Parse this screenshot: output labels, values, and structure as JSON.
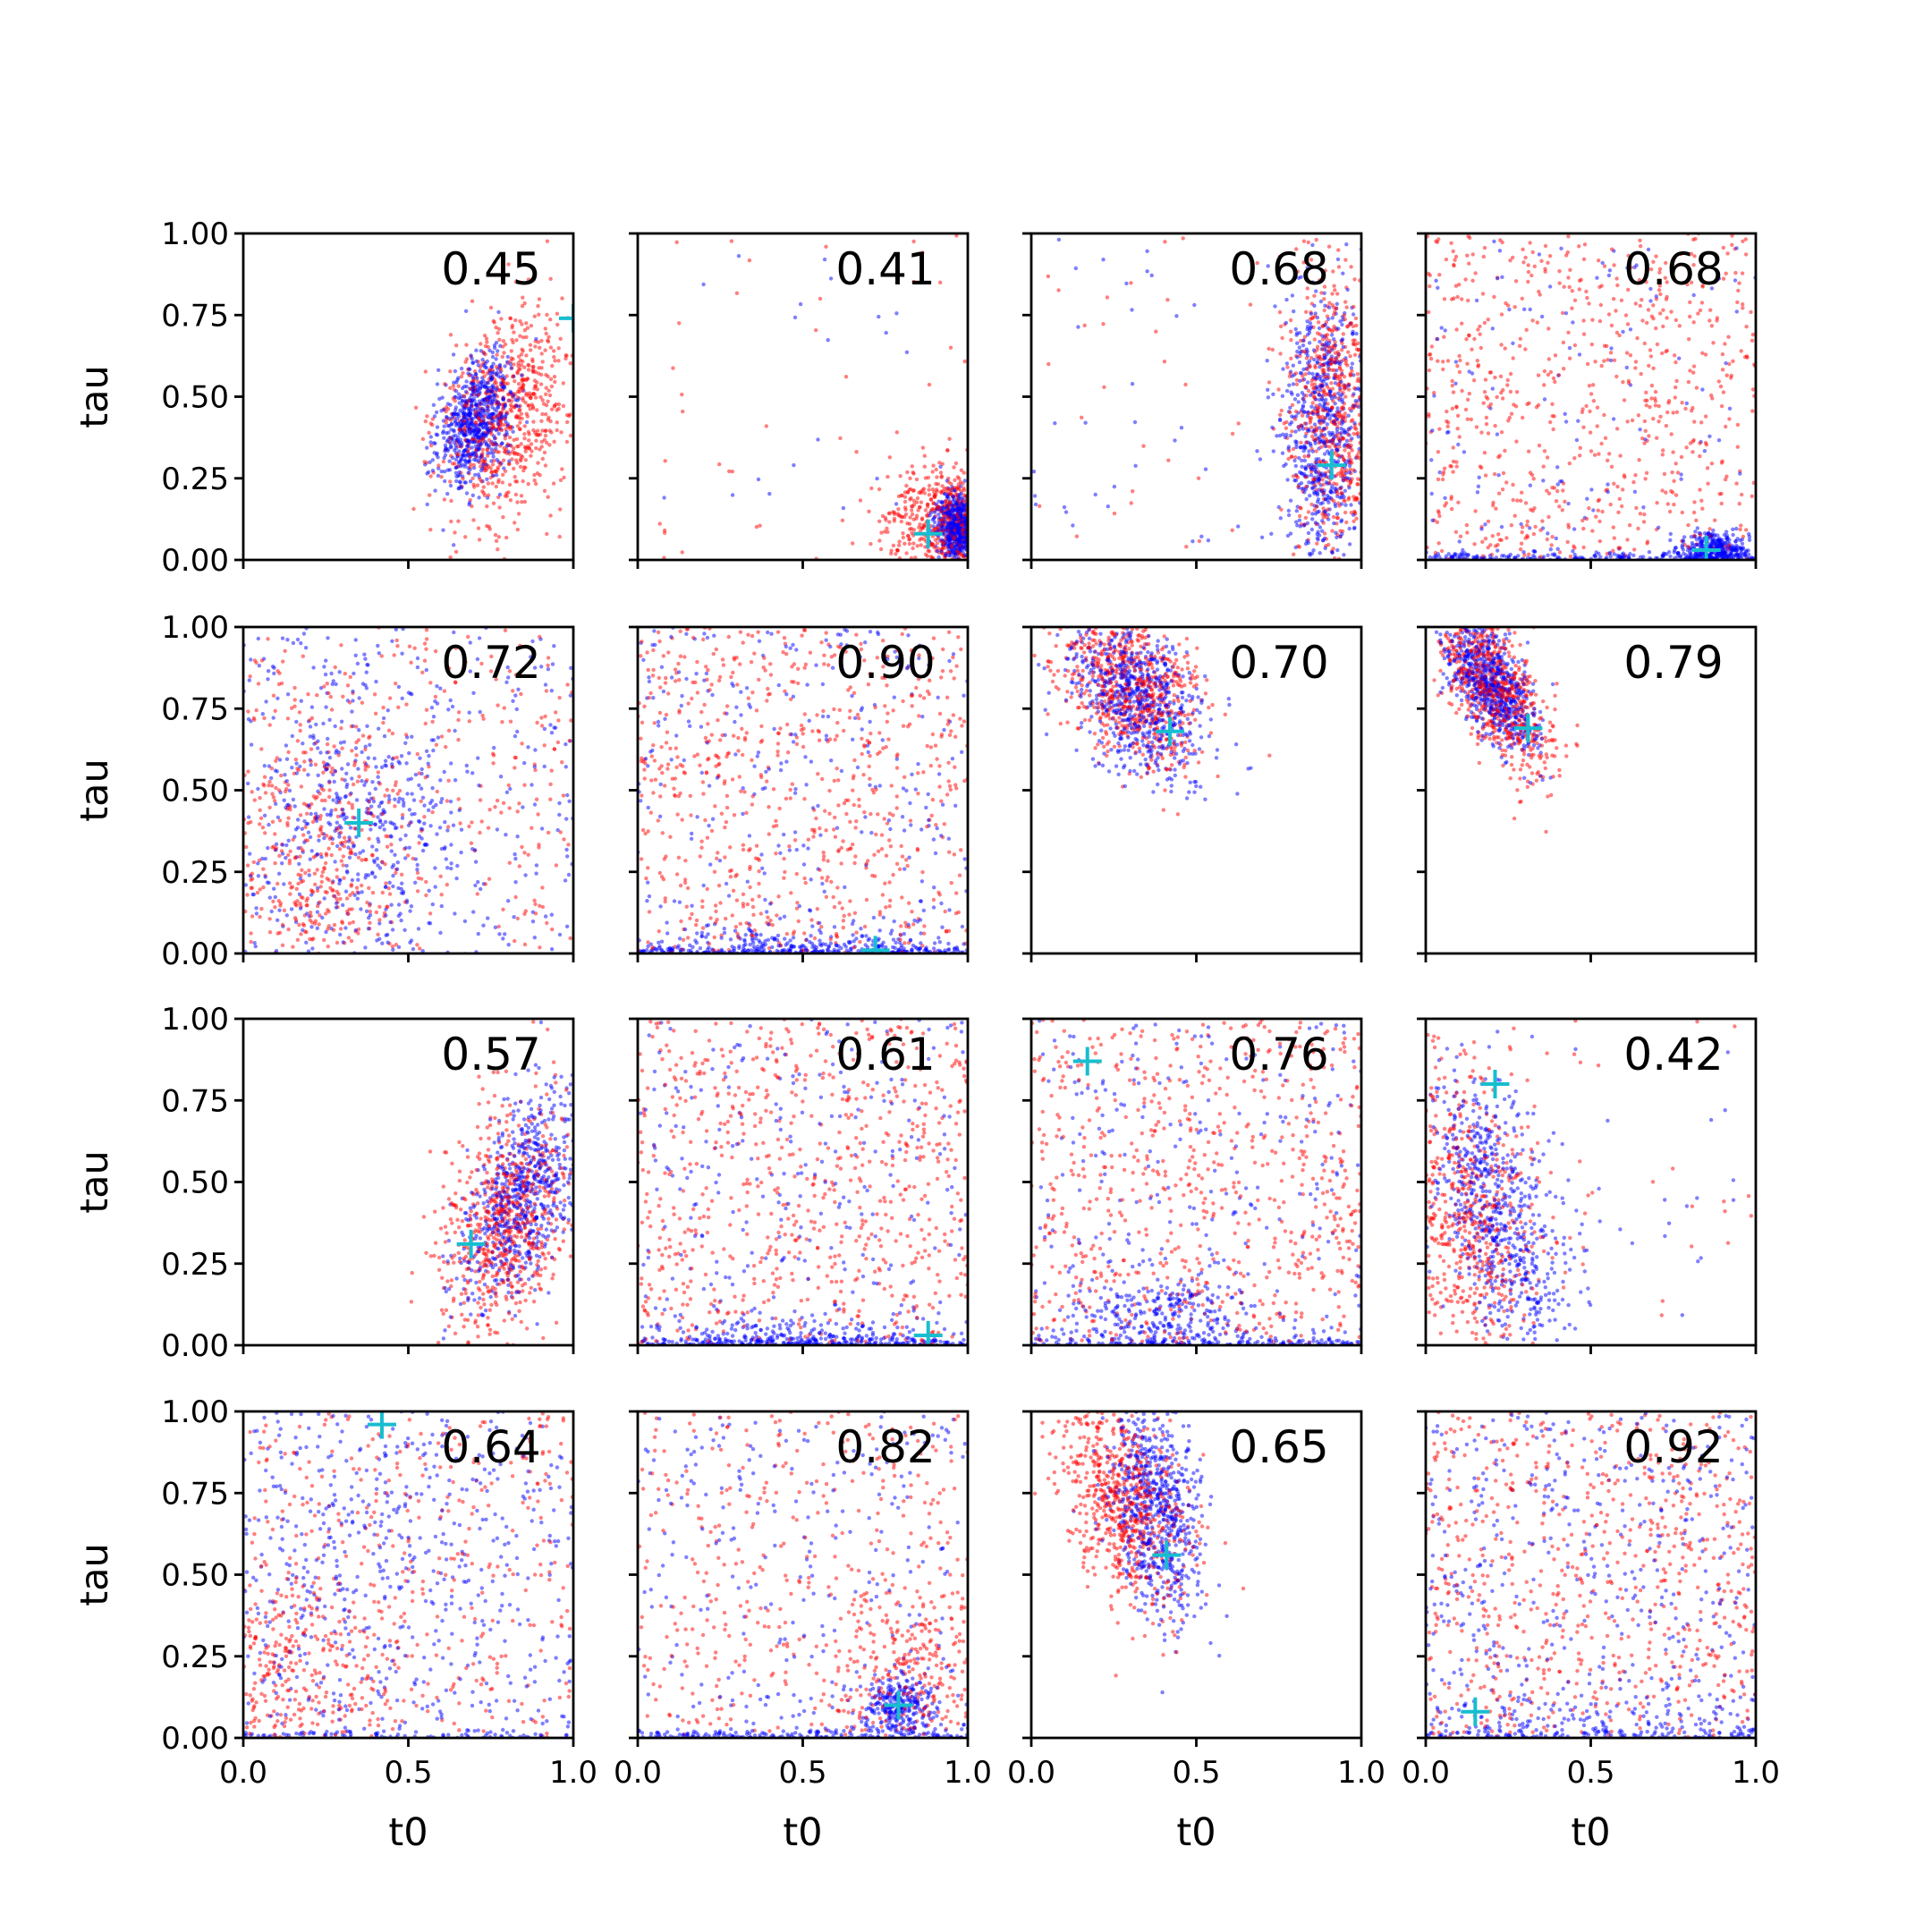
{
  "chart_data": {
    "type": "scatter",
    "layout": "4x4 grid of scatter panels",
    "xlabel": "t0",
    "ylabel": "tau",
    "xlim": [
      0,
      1
    ],
    "ylim": [
      0,
      1
    ],
    "x_ticks": [
      "0.0",
      "0.5",
      "1.0"
    ],
    "y_ticks": [
      "0.00",
      "0.25",
      "0.50",
      "0.75",
      "1.00"
    ],
    "grid": false,
    "colors": {
      "red_samples": "#ff0000",
      "blue_samples": "#0000ff",
      "truth_marker": "#17becf"
    },
    "panels": [
      {
        "score": "0.45",
        "truth": [
          1.0,
          0.74
        ],
        "red": {
          "cx": 0.8,
          "cy": 0.45,
          "sx": 0.1,
          "sy": 0.17,
          "rho": 0.3,
          "u": 0.0
        },
        "blue": {
          "cx": 0.7,
          "cy": 0.42,
          "sx": 0.055,
          "sy": 0.1,
          "rho": 0.3,
          "u": 0.0
        }
      },
      {
        "score": "0.41",
        "truth": [
          0.88,
          0.08
        ],
        "red": {
          "cx": 0.95,
          "cy": 0.12,
          "sx": 0.1,
          "sy": 0.08,
          "rho": 0.0,
          "u": 0.05
        },
        "blue": {
          "cx": 0.97,
          "cy": 0.1,
          "sx": 0.03,
          "sy": 0.05,
          "rho": 0.0,
          "u": 0.03
        }
      },
      {
        "score": "0.68",
        "truth": [
          0.91,
          0.29
        ],
        "red": {
          "cx": 0.92,
          "cy": 0.45,
          "sx": 0.07,
          "sy": 0.22,
          "rho": 0.0,
          "u": 0.04
        },
        "blue": {
          "cx": 0.88,
          "cy": 0.4,
          "sx": 0.06,
          "sy": 0.22,
          "rho": 0.0,
          "u": 0.04
        }
      },
      {
        "score": "0.68",
        "truth": [
          0.85,
          0.03
        ],
        "red": {
          "cx": 0.5,
          "cy": 0.5,
          "sx": 0.2,
          "sy": 0.2,
          "rho": 0.0,
          "u": 1.0
        },
        "blue": {
          "cx": 0.88,
          "cy": 0.03,
          "sx": 0.05,
          "sy": 0.03,
          "rho": 0.0,
          "u": 0.55,
          "floor": 0.35
        }
      },
      {
        "score": "0.72",
        "truth": [
          0.35,
          0.4
        ],
        "red": {
          "cx": 0.22,
          "cy": 0.28,
          "sx": 0.14,
          "sy": 0.25,
          "rho": 0.0,
          "u": 0.45
        },
        "blue": {
          "cx": 0.35,
          "cy": 0.4,
          "sx": 0.15,
          "sy": 0.25,
          "rho": 0.0,
          "u": 0.45
        }
      },
      {
        "score": "0.90",
        "truth": [
          0.72,
          0.01
        ],
        "red": {
          "cx": 0.5,
          "cy": 0.5,
          "sx": 0.2,
          "sy": 0.2,
          "rho": 0.0,
          "u": 1.0
        },
        "blue": {
          "cx": 0.5,
          "cy": 0.03,
          "sx": 0.3,
          "sy": 0.03,
          "rho": 0.0,
          "u": 0.7,
          "floor": 0.3
        }
      },
      {
        "score": "0.70",
        "truth": [
          0.42,
          0.68
        ],
        "red": {
          "cx": 0.3,
          "cy": 0.82,
          "sx": 0.11,
          "sy": 0.12,
          "rho": -0.4,
          "u": 0.0
        },
        "blue": {
          "cx": 0.32,
          "cy": 0.78,
          "sx": 0.1,
          "sy": 0.12,
          "rho": -0.4,
          "u": 0.0
        }
      },
      {
        "score": "0.79",
        "truth": [
          0.31,
          0.69
        ],
        "red": {
          "cx": 0.22,
          "cy": 0.8,
          "sx": 0.08,
          "sy": 0.12,
          "rho": -0.6,
          "u": 0.0
        },
        "blue": {
          "cx": 0.2,
          "cy": 0.82,
          "sx": 0.07,
          "sy": 0.1,
          "rho": -0.6,
          "u": 0.0
        }
      },
      {
        "score": "0.57",
        "truth": [
          0.69,
          0.31
        ],
        "red": {
          "cx": 0.8,
          "cy": 0.38,
          "sx": 0.1,
          "sy": 0.18,
          "rho": 0.3,
          "u": 0.0
        },
        "blue": {
          "cx": 0.85,
          "cy": 0.45,
          "sx": 0.09,
          "sy": 0.16,
          "rho": 0.5,
          "u": 0.0
        }
      },
      {
        "score": "0.61",
        "truth": [
          0.88,
          0.03
        ],
        "red": {
          "cx": 0.5,
          "cy": 0.5,
          "sx": 0.2,
          "sy": 0.2,
          "rho": 0.0,
          "u": 1.0
        },
        "blue": {
          "cx": 0.5,
          "cy": 0.03,
          "sx": 0.3,
          "sy": 0.03,
          "rho": 0.0,
          "u": 0.7,
          "floor": 0.3
        }
      },
      {
        "score": "0.76",
        "truth": [
          0.17,
          0.87
        ],
        "red": {
          "cx": 0.5,
          "cy": 0.5,
          "sx": 0.2,
          "sy": 0.2,
          "rho": 0.0,
          "u": 1.0
        },
        "blue": {
          "cx": 0.38,
          "cy": 0.08,
          "sx": 0.15,
          "sy": 0.07,
          "rho": 0.0,
          "u": 0.55,
          "floor": 0.2
        }
      },
      {
        "score": "0.42",
        "truth": [
          0.21,
          0.8
        ],
        "red": {
          "cx": 0.12,
          "cy": 0.4,
          "sx": 0.12,
          "sy": 0.25,
          "rho": -0.3,
          "u": 0.05
        },
        "blue": {
          "cx": 0.22,
          "cy": 0.4,
          "sx": 0.1,
          "sy": 0.22,
          "rho": -0.6,
          "u": 0.05
        }
      },
      {
        "score": "0.64",
        "truth": [
          0.42,
          0.96
        ],
        "red": {
          "cx": 0.15,
          "cy": 0.2,
          "sx": 0.18,
          "sy": 0.18,
          "rho": 0.0,
          "u": 0.55
        },
        "blue": {
          "cx": 0.35,
          "cy": 0.5,
          "sx": 0.2,
          "sy": 0.3,
          "rho": 0.0,
          "u": 0.7,
          "floor": 0.1
        }
      },
      {
        "score": "0.82",
        "truth": [
          0.79,
          0.1
        ],
        "red": {
          "cx": 0.85,
          "cy": 0.2,
          "sx": 0.15,
          "sy": 0.18,
          "rho": 0.0,
          "u": 0.5
        },
        "blue": {
          "cx": 0.79,
          "cy": 0.1,
          "sx": 0.05,
          "sy": 0.05,
          "rho": 0.0,
          "u": 0.6,
          "floor": 0.25
        }
      },
      {
        "score": "0.65",
        "truth": [
          0.41,
          0.56
        ],
        "red": {
          "cx": 0.28,
          "cy": 0.72,
          "sx": 0.1,
          "sy": 0.16,
          "rho": -0.4,
          "u": 0.0
        },
        "blue": {
          "cx": 0.38,
          "cy": 0.7,
          "sx": 0.07,
          "sy": 0.18,
          "rho": -0.3,
          "u": 0.0
        }
      },
      {
        "score": "0.92",
        "truth": [
          0.15,
          0.08
        ],
        "red": {
          "cx": 0.5,
          "cy": 0.5,
          "sx": 0.2,
          "sy": 0.2,
          "rho": 0.0,
          "u": 1.0
        },
        "blue": {
          "cx": 0.5,
          "cy": 0.05,
          "sx": 0.3,
          "sy": 0.04,
          "rho": 0.0,
          "u": 0.8,
          "floor": 0.15
        }
      }
    ]
  }
}
